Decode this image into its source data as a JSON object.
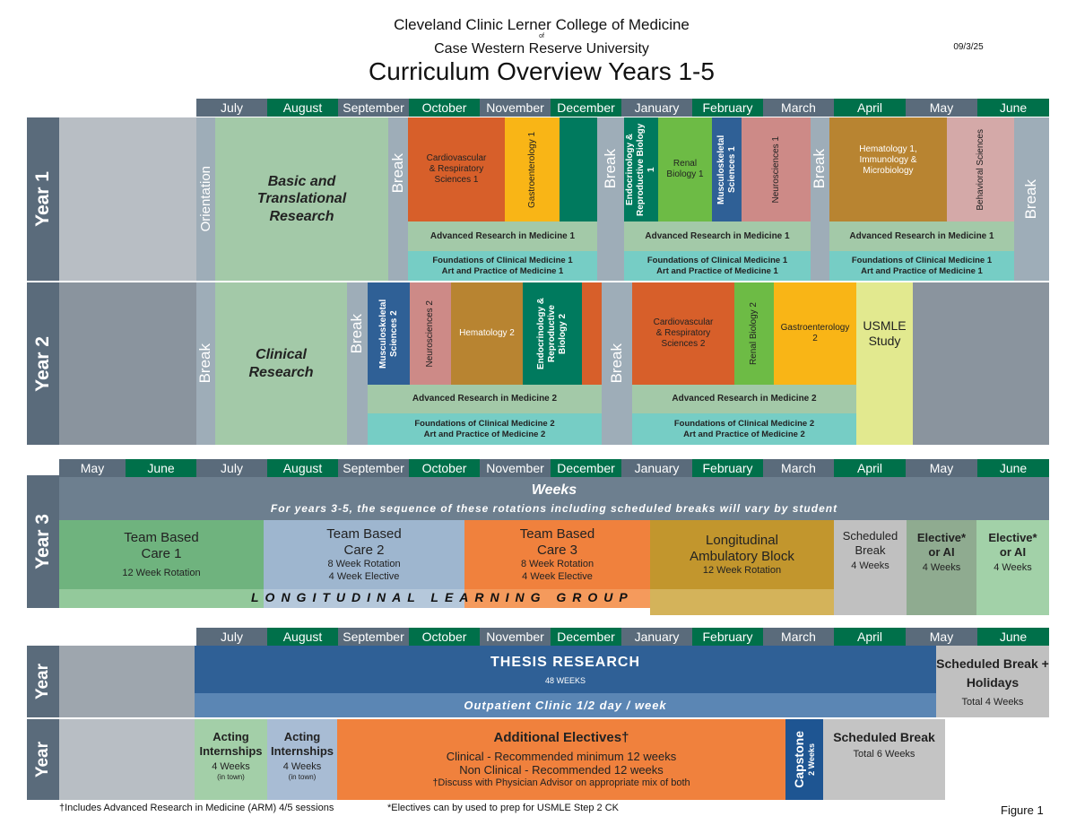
{
  "header": {
    "line1": "Cleveland Clinic Lerner College of Medicine",
    "of": "of",
    "line2": "Case Western Reserve University",
    "title": "Curriculum Overview Years 1-5",
    "date": "09/3/25"
  },
  "months_y12": [
    "July",
    "August",
    "September",
    "October",
    "November",
    "December",
    "January",
    "February",
    "March",
    "April",
    "May",
    "June"
  ],
  "months_y3": [
    "May",
    "June",
    "July",
    "August",
    "September",
    "October",
    "November",
    "December",
    "January",
    "February",
    "March",
    "April",
    "May",
    "June"
  ],
  "colors": {
    "slate": "#5a6b7b",
    "green": "#00704a"
  },
  "year1": {
    "label": "Year 1",
    "orientation": "Orientation",
    "basic": "Basic and Translational Research",
    "break": "Break",
    "cardio": "Cardiovascular & Respiratory Sciences 1",
    "gastro": "Gastroenterology 1",
    "endo": "Endocrinology & Reproductive Biology 1",
    "renal": "Renal Biology 1",
    "musculo": "Musculoskeletal Sciences 1",
    "neuro": "Neurosciences 1",
    "heme": "Hematology 1, Immunology & Microbiology",
    "behavioral": "Behavioral Sciences",
    "arm": "Advanced Research in Medicine 1",
    "fcm": "Foundations of Clinical Medicine 1",
    "apm": "Art and Practice of Medicine 1"
  },
  "year2": {
    "label": "Year 2",
    "break": "Break",
    "clinical": "Clinical Research",
    "musculo": "Musculoskeletal Sciences 2",
    "neuro": "Neurosciences 2",
    "heme": "Hematology 2",
    "endo": "Endocrinology & Reproductive Biology 2",
    "cardio": "Cardiovascular & Respiratory Sciences 2",
    "renal": "Renal Biology 2",
    "gastro": "Gastroenterology 2",
    "usmle": "USMLE Study",
    "arm": "Advanced Research in Medicine 2",
    "fcm": "Foundations of Clinical Medicine 2",
    "apm": "Art and Practice of Medicine 2"
  },
  "year3": {
    "label": "Year 3",
    "weeks": "Weeks",
    "note": "For years 3-5, the sequence of these rotations including scheduled breaks will vary by student",
    "tbc1": {
      "title": "Team Based Care 1",
      "sub": "12 Week Rotation"
    },
    "tbc2": {
      "title": "Team Based Care 2",
      "sub1": "8 Week Rotation",
      "sub2": "4 Week Elective"
    },
    "tbc3": {
      "title": "Team Based Care 3",
      "sub1": "8 Week Rotation",
      "sub2": "4 Week Elective"
    },
    "lab": {
      "title": "Longitudinal Ambulatory Block",
      "sub": "12 Week Rotation"
    },
    "sched": {
      "title": "Scheduled Break",
      "sub": "4 Weeks"
    },
    "elective1": {
      "title": "Elective* or AI",
      "sub": "4 Weeks"
    },
    "elective2": {
      "title": "Elective* or AI",
      "sub": "4 Weeks"
    },
    "llg": "LONGITUDINAL LEARNING GROUP"
  },
  "year4": {
    "label": "Year",
    "thesis": "THESIS RESEARCH",
    "weeks": "48 WEEKS",
    "clinic": "Outpatient Clinic 1/2 day / week",
    "sched_title": "Scheduled Break + Holidays",
    "sched_sub": "Total 4 Weeks"
  },
  "year5": {
    "label": "Year",
    "ai_title": "Acting Internships",
    "ai_weeks": "4 Weeks",
    "ai_note": "(in town)",
    "electives": "Additional Electives†",
    "clinical": "Clinical - Recommended minimum 12 weeks",
    "nonclinical": "Non Clinical - Recommended 12 weeks",
    "discuss": "†Discuss with Physician Advisor on appropriate mix of both",
    "capstone": "Capstone",
    "capstone_weeks": "2 Weeks",
    "sched_title": "Scheduled Break",
    "sched_sub": "Total 6 Weeks"
  },
  "footer": {
    "note1": "†Includes Advanced Research in Medicine (ARM) 4/5 sessions",
    "note2": "*Electives can by used to prep for USMLE Step 2 CK",
    "figure": "Figure 1"
  }
}
